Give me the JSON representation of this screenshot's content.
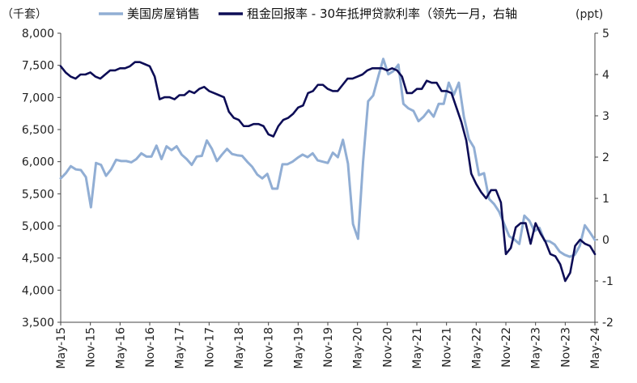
{
  "chart_data": {
    "type": "line",
    "legend": [
      {
        "name": "美国房屋销售",
        "color": "#91aed4"
      },
      {
        "name": "租金回报率 - 30年抵押贷款利率（领先一月，右轴",
        "color": "#0d0d56"
      }
    ],
    "left_unit": "（千套）",
    "right_unit": "(ppt)",
    "x_labels": [
      "May-15",
      "Nov-15",
      "May-16",
      "Nov-16",
      "May-17",
      "Nov-17",
      "May-18",
      "Nov-18",
      "May-19",
      "Nov-19",
      "May-20",
      "Nov-20",
      "May-21",
      "Nov-21",
      "May-22",
      "Nov-22",
      "May-23",
      "Nov-23",
      "May-24"
    ],
    "left_axis": {
      "min": 3500,
      "max": 8000,
      "ticks": [
        "3,500",
        "4,000",
        "4,500",
        "5,000",
        "5,500",
        "6,000",
        "6,500",
        "7,000",
        "7,500",
        "8,000"
      ]
    },
    "right_axis": {
      "min": -2,
      "max": 5,
      "ticks": [
        "-2",
        "-1",
        "0",
        "1",
        "2",
        "3",
        "4",
        "5"
      ],
      "negative_color": "#e0101b"
    },
    "series": [
      {
        "name": "美国房屋销售",
        "axis": "left",
        "color": "#91aed4",
        "values": [
          5740,
          5820,
          5930,
          5880,
          5870,
          5760,
          5290,
          5980,
          5950,
          5780,
          5880,
          6030,
          6010,
          6010,
          5990,
          6040,
          6130,
          6080,
          6080,
          6250,
          6040,
          6240,
          6180,
          6240,
          6110,
          6040,
          5950,
          6080,
          6090,
          6330,
          6200,
          6010,
          6110,
          6200,
          6120,
          6100,
          6090,
          6000,
          5920,
          5800,
          5740,
          5810,
          5580,
          5580,
          5960,
          5960,
          6000,
          6060,
          6110,
          6070,
          6130,
          6020,
          6000,
          5980,
          6140,
          6070,
          6340,
          5970,
          5030,
          4800,
          6000,
          6940,
          7030,
          7320,
          7600,
          7360,
          7410,
          7510,
          6900,
          6830,
          6790,
          6630,
          6700,
          6800,
          6700,
          6900,
          6900,
          7230,
          7040,
          7230,
          6700,
          6350,
          6220,
          5790,
          5820,
          5420,
          5340,
          5220,
          5030,
          4840,
          4790,
          4720,
          5160,
          5080,
          4920,
          4970,
          4770,
          4760,
          4710,
          4600,
          4550,
          4520,
          4550,
          4690,
          5010,
          4900,
          4780
        ]
      },
      {
        "name": "租金回报率 - 30年抵押贷款利率（领先一月，右轴",
        "axis": "right",
        "color": "#0d0d56",
        "values": [
          4.2,
          4.05,
          3.95,
          3.9,
          4.0,
          4.0,
          4.05,
          3.95,
          3.9,
          4.0,
          4.1,
          4.1,
          4.15,
          4.15,
          4.2,
          4.3,
          4.3,
          4.25,
          4.2,
          3.95,
          3.4,
          3.45,
          3.45,
          3.4,
          3.5,
          3.5,
          3.6,
          3.55,
          3.65,
          3.7,
          3.6,
          3.55,
          3.5,
          3.45,
          3.1,
          2.95,
          2.9,
          2.75,
          2.75,
          2.8,
          2.8,
          2.75,
          2.55,
          2.5,
          2.75,
          2.9,
          2.95,
          3.05,
          3.2,
          3.25,
          3.55,
          3.6,
          3.75,
          3.75,
          3.65,
          3.6,
          3.6,
          3.75,
          3.9,
          3.9,
          3.95,
          4.0,
          4.1,
          4.15,
          4.15,
          4.15,
          4.1,
          4.15,
          4.1,
          3.95,
          3.55,
          3.55,
          3.65,
          3.65,
          3.85,
          3.8,
          3.8,
          3.6,
          3.6,
          3.55,
          3.2,
          2.85,
          2.4,
          1.6,
          1.35,
          1.15,
          1.0,
          1.2,
          1.2,
          0.9,
          -0.35,
          -0.2,
          0.3,
          0.4,
          0.4,
          -0.1,
          0.4,
          0.15,
          -0.05,
          -0.35,
          -0.4,
          -0.6,
          -1.0,
          -0.8,
          -0.15,
          0.0,
          -0.1,
          -0.15,
          -0.35
        ]
      }
    ]
  }
}
